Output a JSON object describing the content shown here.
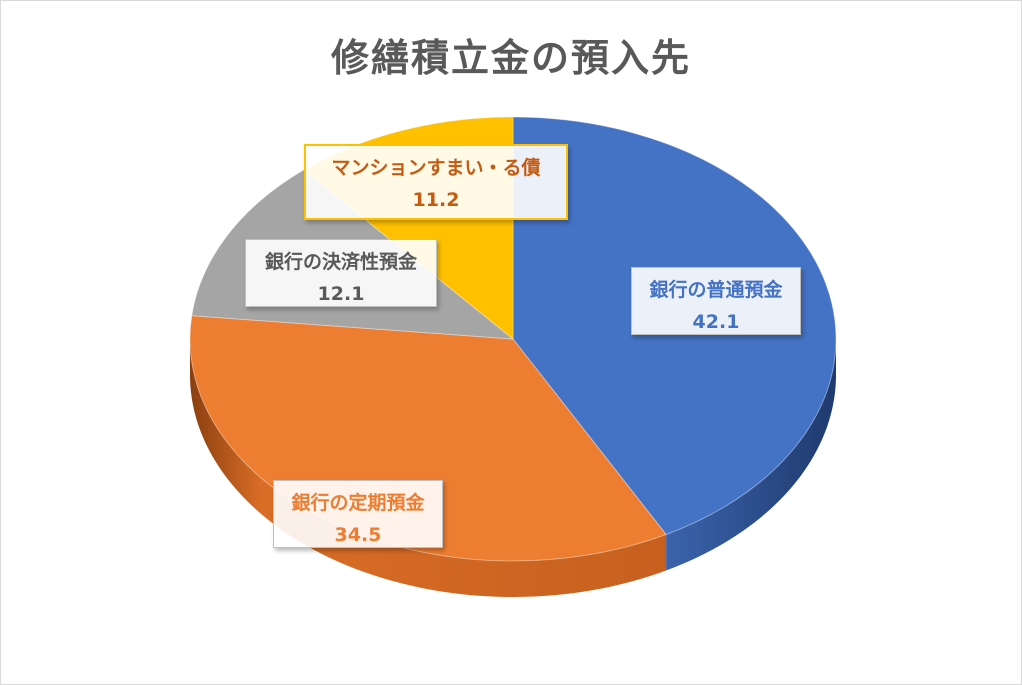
{
  "chart_data": {
    "type": "pie",
    "title": "修繕積立金の預入先",
    "three_d": true,
    "legend": "none",
    "slices": [
      {
        "label": "銀行の普通預金",
        "value": 42.1,
        "value_text": "42.1",
        "color": "#4472c4",
        "text_color": "#4472c4"
      },
      {
        "label": "銀行の定期預金",
        "value": 34.5,
        "value_text": "34.5",
        "color": "#ed7d31",
        "text_color": "#ed7d31"
      },
      {
        "label": "銀行の決済性預金",
        "value": 12.1,
        "value_text": "12.1",
        "color": "#a5a5a5",
        "text_color": "#595959"
      },
      {
        "label": "マンションすまい・る債",
        "value": 11.2,
        "value_text": "11.2",
        "color": "#ffc000",
        "text_color": "#c55a11"
      }
    ]
  }
}
